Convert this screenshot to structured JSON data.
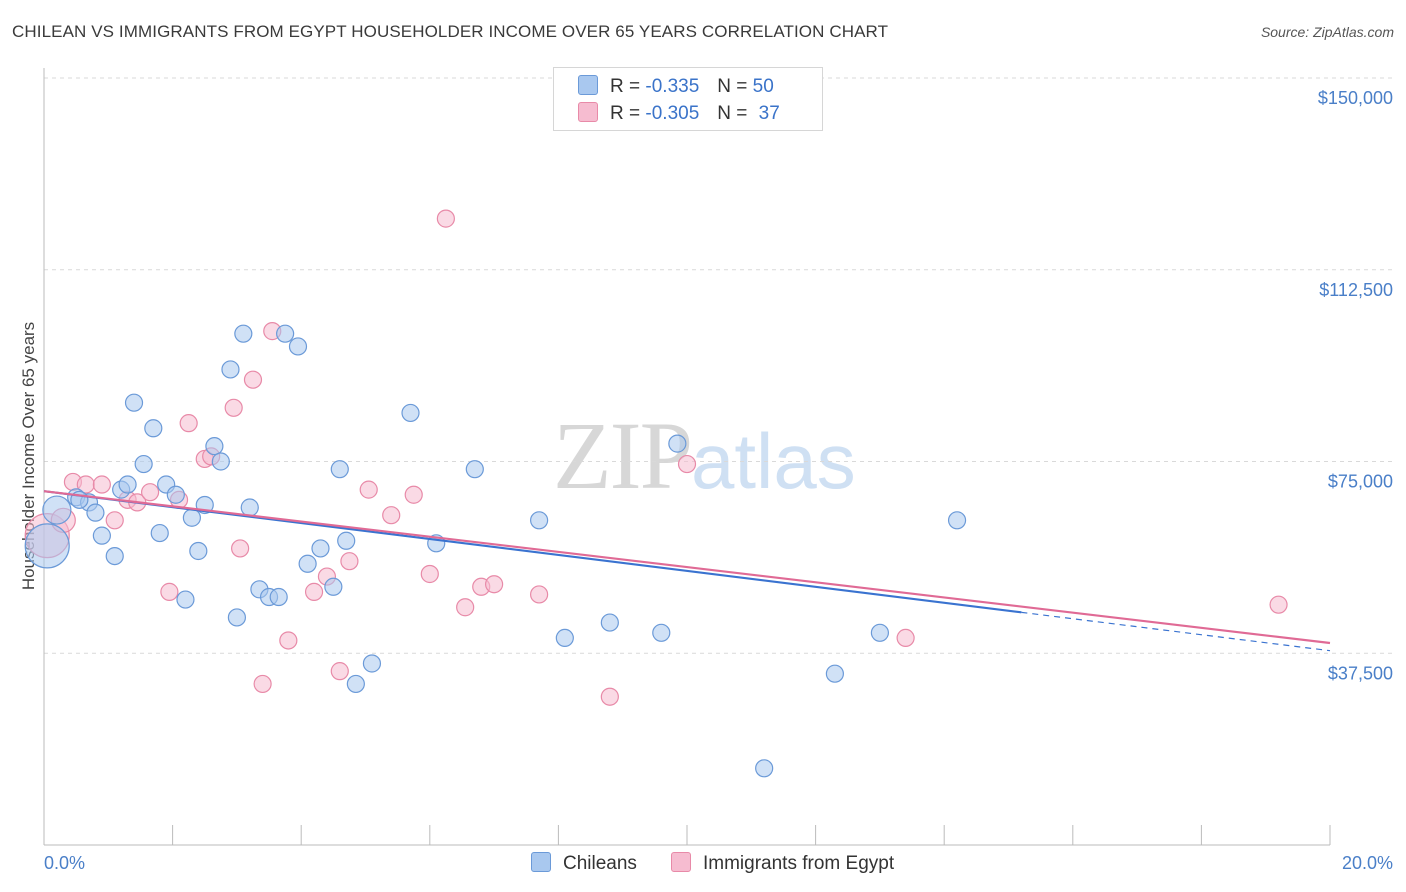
{
  "title": "CHILEAN VS IMMIGRANTS FROM EGYPT HOUSEHOLDER INCOME OVER 65 YEARS CORRELATION CHART",
  "source": "Source: ZipAtlas.com",
  "watermark": {
    "zip": "ZIP",
    "atlas": "atlas"
  },
  "legend": {
    "rows": [
      {
        "r_label": "R =",
        "r_value": "-0.335",
        "n_label": "N =",
        "n_value": "50"
      },
      {
        "r_label": "R =",
        "r_value": "-0.305",
        "n_label": "N =",
        "n_value": "37"
      }
    ]
  },
  "bottom_legend": [
    "Chileans",
    "Immigrants from Egypt"
  ],
  "colors": {
    "chileans_fill": "#a9c8ef",
    "chileans_stroke": "#6b9ad8",
    "chileans_line": "#3a73d0",
    "egypt_fill": "#f6bcd0",
    "egypt_stroke": "#e88aa8",
    "egypt_line": "#e06a95",
    "grid": "#d9d9d9",
    "tick_text": "#4a7fc8"
  },
  "chart_data": {
    "type": "scatter",
    "title": "CHILEAN VS IMMIGRANTS FROM EGYPT HOUSEHOLDER INCOME OVER 65 YEARS CORRELATION CHART",
    "xlabel": "",
    "ylabel": "Householder Income Over 65 years",
    "xlim": [
      0,
      20
    ],
    "ylim": [
      0,
      155000
    ],
    "x_tick_labels": [
      "0.0%",
      "20.0%"
    ],
    "y_ticks": [
      37500,
      75000,
      112500,
      150000
    ],
    "y_tick_labels": [
      "$37,500",
      "$75,000",
      "$112,500",
      "$150,000"
    ],
    "grid": true,
    "series": [
      {
        "name": "Chileans",
        "r": -0.335,
        "n": 50,
        "trend": {
          "x0": 0,
          "y0": 69200,
          "x1": 15.2,
          "y1": 45500,
          "dashed_to_x": 20,
          "dashed_to_y": 38000
        },
        "points": [
          [
            0.05,
            58500,
            22
          ],
          [
            0.2,
            65500,
            14
          ],
          [
            0.5,
            68000,
            10
          ],
          [
            0.7,
            67000,
            10
          ],
          [
            0.8,
            65000,
            10
          ],
          [
            0.9,
            60500,
            10
          ],
          [
            1.1,
            56500,
            10
          ],
          [
            1.2,
            69500,
            10
          ],
          [
            1.3,
            70500,
            10
          ],
          [
            1.4,
            86500,
            10
          ],
          [
            1.55,
            74500,
            10
          ],
          [
            1.7,
            81500,
            10
          ],
          [
            1.8,
            61000,
            10
          ],
          [
            1.9,
            70500,
            10
          ],
          [
            2.05,
            68500,
            10
          ],
          [
            2.2,
            48000,
            10
          ],
          [
            2.3,
            64000,
            10
          ],
          [
            2.4,
            57500,
            10
          ],
          [
            2.5,
            66500,
            10
          ],
          [
            2.65,
            78000,
            10
          ],
          [
            2.75,
            75000,
            10
          ],
          [
            2.9,
            93000,
            10
          ],
          [
            3.0,
            44500,
            10
          ],
          [
            3.1,
            100000,
            10
          ],
          [
            3.2,
            66000,
            10
          ],
          [
            3.35,
            50000,
            10
          ],
          [
            3.5,
            48500,
            10
          ],
          [
            3.65,
            48500,
            10
          ],
          [
            3.75,
            100000,
            10
          ],
          [
            3.95,
            97500,
            10
          ],
          [
            4.1,
            55000,
            10
          ],
          [
            4.3,
            58000,
            10
          ],
          [
            4.5,
            50500,
            10
          ],
          [
            4.6,
            73500,
            10
          ],
          [
            4.7,
            59500,
            10
          ],
          [
            4.85,
            31500,
            10
          ],
          [
            5.1,
            35500,
            10
          ],
          [
            5.7,
            84500,
            10
          ],
          [
            6.1,
            59000,
            10
          ],
          [
            6.7,
            73500,
            10
          ],
          [
            7.7,
            63500,
            10
          ],
          [
            8.1,
            40500,
            10
          ],
          [
            8.8,
            43500,
            10
          ],
          [
            9.6,
            41500,
            10
          ],
          [
            9.85,
            78500,
            10
          ],
          [
            11.2,
            15000,
            10
          ],
          [
            12.3,
            33500,
            10
          ],
          [
            13.0,
            41500,
            10
          ],
          [
            14.2,
            63500,
            10
          ],
          [
            0.55,
            67500,
            10
          ]
        ]
      },
      {
        "name": "Immigrants from Egypt",
        "r": -0.305,
        "n": 37,
        "trend": {
          "x0": 0,
          "y0": 69200,
          "x1": 20,
          "y1": 39500
        },
        "points": [
          [
            0.05,
            60500,
            22
          ],
          [
            0.3,
            63500,
            12
          ],
          [
            0.45,
            71000,
            10
          ],
          [
            0.65,
            70500,
            10
          ],
          [
            0.9,
            70500,
            10
          ],
          [
            1.1,
            63500,
            10
          ],
          [
            1.3,
            67500,
            10
          ],
          [
            1.45,
            67000,
            10
          ],
          [
            1.65,
            69000,
            10
          ],
          [
            1.95,
            49500,
            10
          ],
          [
            2.1,
            67500,
            10
          ],
          [
            2.25,
            82500,
            10
          ],
          [
            2.5,
            75500,
            10
          ],
          [
            2.6,
            76000,
            10
          ],
          [
            2.95,
            85500,
            10
          ],
          [
            3.05,
            58000,
            10
          ],
          [
            3.25,
            91000,
            10
          ],
          [
            3.4,
            31500,
            10
          ],
          [
            3.55,
            100500,
            10
          ],
          [
            3.8,
            40000,
            10
          ],
          [
            4.2,
            49500,
            10
          ],
          [
            4.4,
            52500,
            10
          ],
          [
            4.6,
            34000,
            10
          ],
          [
            4.75,
            55500,
            10
          ],
          [
            5.05,
            69500,
            10
          ],
          [
            5.4,
            64500,
            10
          ],
          [
            5.75,
            68500,
            10
          ],
          [
            6.0,
            53000,
            10
          ],
          [
            6.25,
            122500,
            10
          ],
          [
            6.55,
            46500,
            10
          ],
          [
            6.8,
            50500,
            10
          ],
          [
            7.0,
            51000,
            10
          ],
          [
            7.7,
            49000,
            10
          ],
          [
            8.8,
            29000,
            10
          ],
          [
            10.0,
            74500,
            10
          ],
          [
            13.4,
            40500,
            10
          ],
          [
            19.2,
            47000,
            10
          ]
        ]
      }
    ]
  }
}
